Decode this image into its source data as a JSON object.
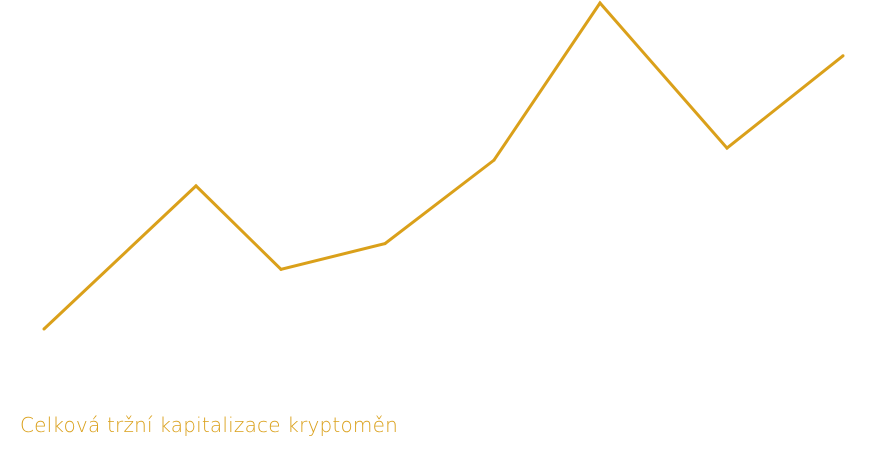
{
  "caption": "Celková tržní kapitalizace kryptoměn",
  "colors": {
    "line": "#DAA01A",
    "caption": "#DAA01A"
  },
  "chart_data": {
    "type": "line",
    "title": "",
    "xlabel": "",
    "ylabel": "",
    "grid": false,
    "legend": "none",
    "ylim": [
      0,
      100
    ],
    "series": [
      {
        "values": [
          0,
          43.9,
          18.3,
          26.2,
          51.8,
          100,
          55.5,
          83.8
        ]
      }
    ]
  }
}
